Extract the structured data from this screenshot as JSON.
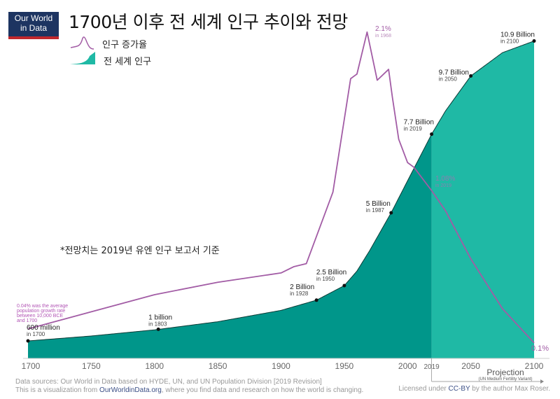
{
  "logo": {
    "line1": "Our World",
    "line2": "in Data"
  },
  "title": "1700년 이후 전 세계 인구 추이와 전망",
  "legend": [
    {
      "label": "인구 증가율",
      "color": "#a25ca5"
    },
    {
      "label": "전 세계 인구",
      "color": "#00968a"
    }
  ],
  "note": "*전망치는 2019년 유엔 인구 보고서 기준",
  "colors": {
    "population_history": "#00968a",
    "population_projection": "#1fb9a5",
    "growth_line": "#a25ca5",
    "markers": "#111111"
  },
  "chart_data": {
    "type": "area",
    "title": "1700년 이후 전 세계 인구 추이와 전망",
    "xlim": [
      1700,
      2100
    ],
    "xticks": [
      1700,
      1750,
      1800,
      1850,
      1900,
      1950,
      2000,
      2050,
      2100
    ],
    "projection_start": 2019,
    "projection_label": "Projection",
    "projection_sublabel": "(UN Medium Fertility Variant)",
    "population_billion": {
      "x": [
        1700,
        1750,
        1800,
        1850,
        1900,
        1928,
        1950,
        1960,
        1970,
        1987,
        2000,
        2019,
        2030,
        2050,
        2075,
        2100
      ],
      "y": [
        0.6,
        0.77,
        0.98,
        1.26,
        1.65,
        2.0,
        2.5,
        3.0,
        3.7,
        5.0,
        6.1,
        7.7,
        8.5,
        9.7,
        10.5,
        10.9
      ]
    },
    "growth_rate_percent": {
      "x": [
        1700,
        1800,
        1850,
        1900,
        1910,
        1920,
        1941,
        1955,
        1960,
        1968,
        1976,
        1985,
        1988,
        1993,
        2000,
        2005,
        2019,
        2030,
        2050,
        2075,
        2100
      ],
      "y": [
        0.19,
        0.41,
        0.49,
        0.55,
        0.59,
        0.61,
        1.07,
        1.8,
        1.83,
        2.1,
        1.79,
        1.86,
        1.68,
        1.41,
        1.26,
        1.23,
        1.08,
        0.95,
        0.64,
        0.32,
        0.1
      ]
    },
    "population_annotations": [
      {
        "year": 1700,
        "value": 0.6,
        "label": "600 million",
        "sub": "in 1700"
      },
      {
        "year": 1803,
        "value": 1.0,
        "label": "1 billion",
        "sub": "in 1803"
      },
      {
        "year": 1928,
        "value": 2.0,
        "label": "2 Billion",
        "sub": "in 1928"
      },
      {
        "year": 1950,
        "value": 2.5,
        "label": "2.5 Billion",
        "sub": "in 1950"
      },
      {
        "year": 1987,
        "value": 5.0,
        "label": "5 Billion",
        "sub": "in 1987"
      },
      {
        "year": 2019,
        "value": 7.7,
        "label": "7.7 Billion",
        "sub": "in 2019"
      },
      {
        "year": 2050,
        "value": 9.7,
        "label": "9.7 Billion",
        "sub": "in 2050"
      },
      {
        "year": 2100,
        "value": 10.9,
        "label": "10.9 Billion",
        "sub": "in 2100"
      }
    ],
    "growth_annotations": [
      {
        "label": "2.1%",
        "sub": "in 1968"
      },
      {
        "label": "1.08%",
        "sub": "in 2019"
      },
      {
        "label": "0.1%",
        "sub": ""
      },
      {
        "label": "0.04% was the average population growth rate between 10,000 BCE and 1700",
        "sub": ""
      }
    ]
  },
  "footer": {
    "src1": "Data sources: Our World in Data based on HYDE, UN, and UN Population Division [2019 Revision]",
    "src2a": "This is a visualization from ",
    "src2link": "OurWorldinData.org",
    "src2b": ", where you find data and research on how the world is changing.",
    "lic_a": "Licensed under ",
    "lic_link": "CC-BY",
    "lic_b": " by the author Max Roser."
  }
}
